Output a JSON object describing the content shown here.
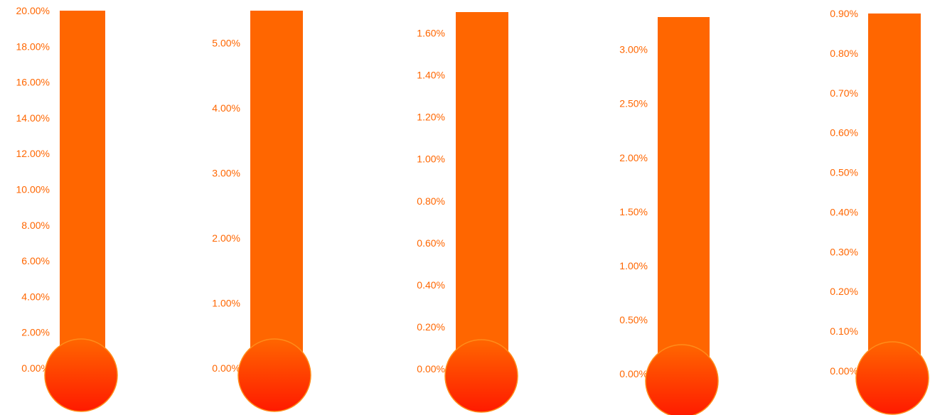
{
  "colors": {
    "tick_text": "#ff6600",
    "tube": "#ff6600",
    "bulb_top": "#ff6600",
    "bulb_bottom": "#ff1a00",
    "bulb_stroke": "#ff8c1a",
    "background": "#ffffff"
  },
  "chart_data": [
    {
      "type": "bar",
      "style": "thermometer",
      "value": 0.2,
      "ylim": [
        0,
        0.2
      ],
      "ticks": [
        "0.00%",
        "2.00%",
        "4.00%",
        "6.00%",
        "8.00%",
        "10.00%",
        "12.00%",
        "14.00%",
        "16.00%",
        "18.00%",
        "20.00%"
      ]
    },
    {
      "type": "bar",
      "style": "thermometer",
      "value": 0.055,
      "ylim": [
        0,
        0.055
      ],
      "ticks": [
        "0.00%",
        "1.00%",
        "2.00%",
        "3.00%",
        "4.00%",
        "5.00%"
      ]
    },
    {
      "type": "bar",
      "style": "thermometer",
      "value": 0.017,
      "ylim": [
        0,
        0.017
      ],
      "ticks": [
        "0.00%",
        "0.20%",
        "0.40%",
        "0.60%",
        "0.80%",
        "1.00%",
        "1.20%",
        "1.40%",
        "1.60%"
      ]
    },
    {
      "type": "bar",
      "style": "thermometer",
      "value": 0.033,
      "ylim": [
        0,
        0.033
      ],
      "ticks": [
        "0.00%",
        "0.50%",
        "1.00%",
        "1.50%",
        "2.00%",
        "2.50%",
        "3.00%"
      ]
    },
    {
      "type": "bar",
      "style": "thermometer",
      "value": 0.009,
      "ylim": [
        0,
        0.009
      ],
      "ticks": [
        "0.00%",
        "0.10%",
        "0.20%",
        "0.30%",
        "0.40%",
        "0.50%",
        "0.60%",
        "0.70%",
        "0.80%",
        "0.90%"
      ]
    }
  ]
}
